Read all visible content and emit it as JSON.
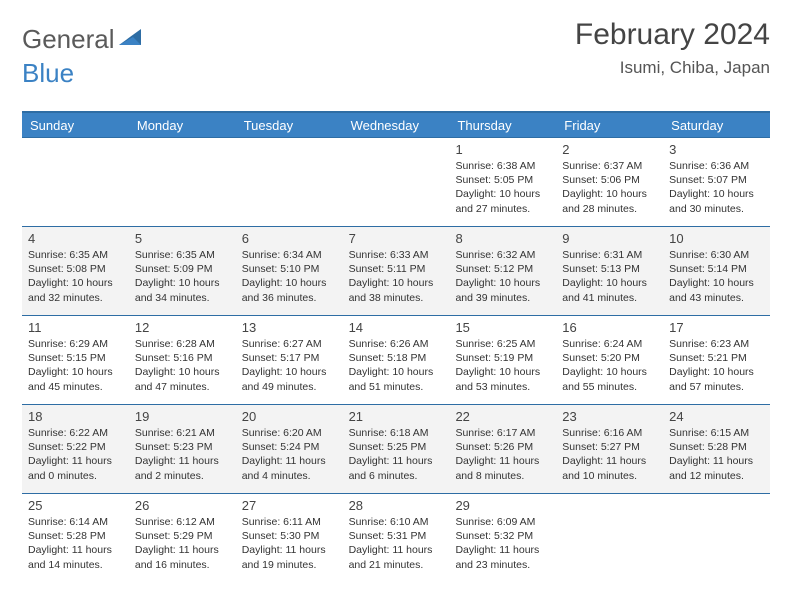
{
  "brand": {
    "part1": "General",
    "part2": "Blue"
  },
  "title": "February 2024",
  "location": "Isumi, Chiba, Japan",
  "colors": {
    "brand_blue": "#3b82c4",
    "rule_blue": "#2e6da4",
    "alt_row_bg": "#f3f3f3",
    "text": "#333333"
  },
  "columns": [
    "Sunday",
    "Monday",
    "Tuesday",
    "Wednesday",
    "Thursday",
    "Friday",
    "Saturday"
  ],
  "weeks": [
    [
      null,
      null,
      null,
      null,
      {
        "d": "1",
        "sr": "6:38 AM",
        "ss": "5:05 PM",
        "dl": "10 hours and 27 minutes."
      },
      {
        "d": "2",
        "sr": "6:37 AM",
        "ss": "5:06 PM",
        "dl": "10 hours and 28 minutes."
      },
      {
        "d": "3",
        "sr": "6:36 AM",
        "ss": "5:07 PM",
        "dl": "10 hours and 30 minutes."
      }
    ],
    [
      {
        "d": "4",
        "sr": "6:35 AM",
        "ss": "5:08 PM",
        "dl": "10 hours and 32 minutes."
      },
      {
        "d": "5",
        "sr": "6:35 AM",
        "ss": "5:09 PM",
        "dl": "10 hours and 34 minutes."
      },
      {
        "d": "6",
        "sr": "6:34 AM",
        "ss": "5:10 PM",
        "dl": "10 hours and 36 minutes."
      },
      {
        "d": "7",
        "sr": "6:33 AM",
        "ss": "5:11 PM",
        "dl": "10 hours and 38 minutes."
      },
      {
        "d": "8",
        "sr": "6:32 AM",
        "ss": "5:12 PM",
        "dl": "10 hours and 39 minutes."
      },
      {
        "d": "9",
        "sr": "6:31 AM",
        "ss": "5:13 PM",
        "dl": "10 hours and 41 minutes."
      },
      {
        "d": "10",
        "sr": "6:30 AM",
        "ss": "5:14 PM",
        "dl": "10 hours and 43 minutes."
      }
    ],
    [
      {
        "d": "11",
        "sr": "6:29 AM",
        "ss": "5:15 PM",
        "dl": "10 hours and 45 minutes."
      },
      {
        "d": "12",
        "sr": "6:28 AM",
        "ss": "5:16 PM",
        "dl": "10 hours and 47 minutes."
      },
      {
        "d": "13",
        "sr": "6:27 AM",
        "ss": "5:17 PM",
        "dl": "10 hours and 49 minutes."
      },
      {
        "d": "14",
        "sr": "6:26 AM",
        "ss": "5:18 PM",
        "dl": "10 hours and 51 minutes."
      },
      {
        "d": "15",
        "sr": "6:25 AM",
        "ss": "5:19 PM",
        "dl": "10 hours and 53 minutes."
      },
      {
        "d": "16",
        "sr": "6:24 AM",
        "ss": "5:20 PM",
        "dl": "10 hours and 55 minutes."
      },
      {
        "d": "17",
        "sr": "6:23 AM",
        "ss": "5:21 PM",
        "dl": "10 hours and 57 minutes."
      }
    ],
    [
      {
        "d": "18",
        "sr": "6:22 AM",
        "ss": "5:22 PM",
        "dl": "11 hours and 0 minutes."
      },
      {
        "d": "19",
        "sr": "6:21 AM",
        "ss": "5:23 PM",
        "dl": "11 hours and 2 minutes."
      },
      {
        "d": "20",
        "sr": "6:20 AM",
        "ss": "5:24 PM",
        "dl": "11 hours and 4 minutes."
      },
      {
        "d": "21",
        "sr": "6:18 AM",
        "ss": "5:25 PM",
        "dl": "11 hours and 6 minutes."
      },
      {
        "d": "22",
        "sr": "6:17 AM",
        "ss": "5:26 PM",
        "dl": "11 hours and 8 minutes."
      },
      {
        "d": "23",
        "sr": "6:16 AM",
        "ss": "5:27 PM",
        "dl": "11 hours and 10 minutes."
      },
      {
        "d": "24",
        "sr": "6:15 AM",
        "ss": "5:28 PM",
        "dl": "11 hours and 12 minutes."
      }
    ],
    [
      {
        "d": "25",
        "sr": "6:14 AM",
        "ss": "5:28 PM",
        "dl": "11 hours and 14 minutes."
      },
      {
        "d": "26",
        "sr": "6:12 AM",
        "ss": "5:29 PM",
        "dl": "11 hours and 16 minutes."
      },
      {
        "d": "27",
        "sr": "6:11 AM",
        "ss": "5:30 PM",
        "dl": "11 hours and 19 minutes."
      },
      {
        "d": "28",
        "sr": "6:10 AM",
        "ss": "5:31 PM",
        "dl": "11 hours and 21 minutes."
      },
      {
        "d": "29",
        "sr": "6:09 AM",
        "ss": "5:32 PM",
        "dl": "11 hours and 23 minutes."
      },
      null,
      null
    ]
  ],
  "labels": {
    "sunrise": "Sunrise:",
    "sunset": "Sunset:",
    "daylight": "Daylight:"
  }
}
